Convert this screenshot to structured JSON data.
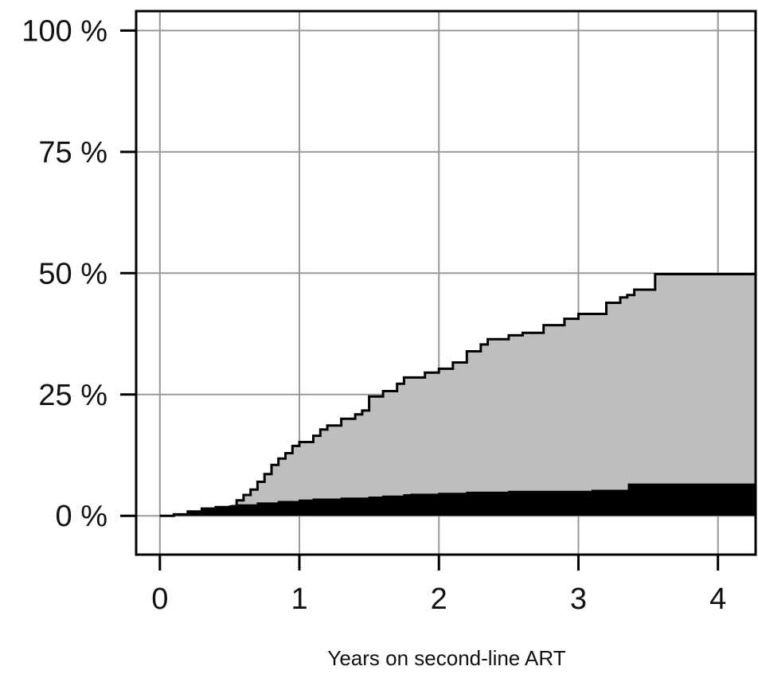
{
  "chart_data": {
    "type": "area",
    "title": "",
    "xlabel": "Years on second-line ART",
    "ylabel": "",
    "xlim": [
      -0.17,
      4.27
    ],
    "ylim": [
      -8,
      104
    ],
    "x_ticks": [
      {
        "value": 0,
        "label": "0"
      },
      {
        "value": 1,
        "label": "1"
      },
      {
        "value": 2,
        "label": "2"
      },
      {
        "value": 3,
        "label": "3"
      },
      {
        "value": 4,
        "label": "4"
      }
    ],
    "y_ticks": [
      {
        "value": 0,
        "label": "0 %"
      },
      {
        "value": 25,
        "label": "25 %"
      },
      {
        "value": 50,
        "label": "50 %"
      },
      {
        "value": 75,
        "label": "75 %"
      },
      {
        "value": 100,
        "label": "100 %"
      }
    ],
    "grid": true,
    "colors": {
      "lower_fill": "#000000",
      "upper_fill": "#bebebe",
      "grid": "#999999",
      "axis": "#000000"
    },
    "series": [
      {
        "values": [
          [
            0,
            0
          ],
          [
            0.1,
            0.3
          ],
          [
            0.2,
            0.9
          ],
          [
            0.3,
            1.5
          ],
          [
            0.4,
            1.8
          ],
          [
            0.5,
            2.0
          ],
          [
            0.55,
            2.2
          ],
          [
            0.7,
            2.6
          ],
          [
            0.85,
            2.9
          ],
          [
            1.0,
            3.2
          ],
          [
            1.1,
            3.4
          ],
          [
            1.3,
            3.6
          ],
          [
            1.5,
            3.8
          ],
          [
            1.6,
            4.0
          ],
          [
            1.75,
            4.3
          ],
          [
            1.8,
            4.4
          ],
          [
            2.0,
            4.6
          ],
          [
            2.2,
            4.8
          ],
          [
            2.5,
            5.0
          ],
          [
            2.8,
            5.0
          ],
          [
            3.1,
            5.2
          ],
          [
            3.35,
            5.2
          ],
          [
            3.36,
            6.5
          ],
          [
            4.27,
            6.5
          ]
        ]
      },
      {
        "values": [
          [
            0,
            0
          ],
          [
            0.1,
            0.3
          ],
          [
            0.2,
            0.9
          ],
          [
            0.3,
            1.5
          ],
          [
            0.4,
            1.8
          ],
          [
            0.52,
            2.0
          ],
          [
            0.55,
            3.2
          ],
          [
            0.6,
            4.3
          ],
          [
            0.65,
            5.4
          ],
          [
            0.7,
            7.0
          ],
          [
            0.75,
            8.6
          ],
          [
            0.8,
            10.5
          ],
          [
            0.85,
            11.8
          ],
          [
            0.9,
            12.9
          ],
          [
            0.95,
            14.4
          ],
          [
            1.0,
            15.2
          ],
          [
            1.1,
            16.5
          ],
          [
            1.15,
            17.8
          ],
          [
            1.2,
            18.6
          ],
          [
            1.3,
            20.0
          ],
          [
            1.4,
            20.9
          ],
          [
            1.45,
            21.7
          ],
          [
            1.5,
            24.6
          ],
          [
            1.6,
            25.7
          ],
          [
            1.7,
            27.2
          ],
          [
            1.75,
            28.5
          ],
          [
            1.9,
            29.5
          ],
          [
            2.0,
            30.3
          ],
          [
            2.1,
            31.6
          ],
          [
            2.2,
            33.9
          ],
          [
            2.3,
            35.3
          ],
          [
            2.35,
            36.4
          ],
          [
            2.5,
            37.2
          ],
          [
            2.6,
            37.7
          ],
          [
            2.75,
            39.3
          ],
          [
            2.9,
            40.6
          ],
          [
            3.0,
            41.6
          ],
          [
            3.15,
            41.6
          ],
          [
            3.2,
            43.9
          ],
          [
            3.3,
            45.0
          ],
          [
            3.35,
            45.5
          ],
          [
            3.4,
            46.6
          ],
          [
            3.5,
            46.6
          ],
          [
            3.55,
            49.8
          ],
          [
            4.27,
            49.8
          ]
        ]
      }
    ]
  }
}
